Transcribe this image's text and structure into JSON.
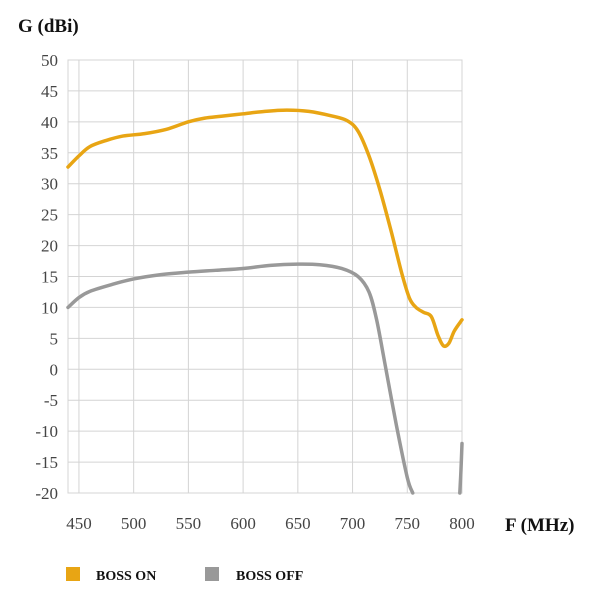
{
  "chart_data": {
    "type": "line",
    "ylabel": "G (dBi)",
    "xlabel": "F (MHz)",
    "xlim": [
      450,
      800
    ],
    "ylim": [
      -20,
      50
    ],
    "x_ticks": [
      450,
      500,
      550,
      600,
      650,
      700,
      750,
      800
    ],
    "y_ticks": [
      50,
      45,
      40,
      35,
      30,
      25,
      20,
      15,
      10,
      5,
      0,
      -5,
      -10,
      -15,
      -20
    ],
    "grid": true,
    "legend_position": "bottom-left",
    "series": [
      {
        "name": "BOSS ON",
        "color": "#E8A514",
        "points": [
          [
            440,
            32.7
          ],
          [
            450,
            34.5
          ],
          [
            460,
            36.0
          ],
          [
            475,
            37.0
          ],
          [
            490,
            37.7
          ],
          [
            510,
            38.1
          ],
          [
            530,
            38.8
          ],
          [
            550,
            40.0
          ],
          [
            565,
            40.6
          ],
          [
            580,
            40.9
          ],
          [
            600,
            41.3
          ],
          [
            620,
            41.7
          ],
          [
            640,
            41.9
          ],
          [
            660,
            41.7
          ],
          [
            680,
            41.0
          ],
          [
            695,
            40.2
          ],
          [
            705,
            38.5
          ],
          [
            715,
            34.5
          ],
          [
            725,
            29.0
          ],
          [
            735,
            22.5
          ],
          [
            745,
            15.5
          ],
          [
            752,
            11.5
          ],
          [
            758,
            10.0
          ],
          [
            765,
            9.2
          ],
          [
            772,
            8.5
          ],
          [
            778,
            5.5
          ],
          [
            783,
            3.8
          ],
          [
            788,
            4.2
          ],
          [
            793,
            6.2
          ],
          [
            800,
            8.0
          ]
        ]
      },
      {
        "name": "BOSS OFF",
        "color": "#999999",
        "points": [
          [
            440,
            10.0
          ],
          [
            450,
            11.6
          ],
          [
            460,
            12.6
          ],
          [
            480,
            13.7
          ],
          [
            500,
            14.6
          ],
          [
            525,
            15.3
          ],
          [
            550,
            15.7
          ],
          [
            575,
            16.0
          ],
          [
            600,
            16.3
          ],
          [
            625,
            16.8
          ],
          [
            650,
            17.0
          ],
          [
            670,
            16.9
          ],
          [
            690,
            16.3
          ],
          [
            705,
            15.0
          ],
          [
            715,
            12.5
          ],
          [
            722,
            8.0
          ],
          [
            730,
            0.5
          ],
          [
            740,
            -9.0
          ],
          [
            750,
            -17.5
          ],
          [
            755,
            -20.0
          ]
        ],
        "extra_segment": [
          [
            798,
            -20.0
          ],
          [
            799,
            -16.5
          ],
          [
            800,
            -12.0
          ]
        ]
      }
    ]
  }
}
